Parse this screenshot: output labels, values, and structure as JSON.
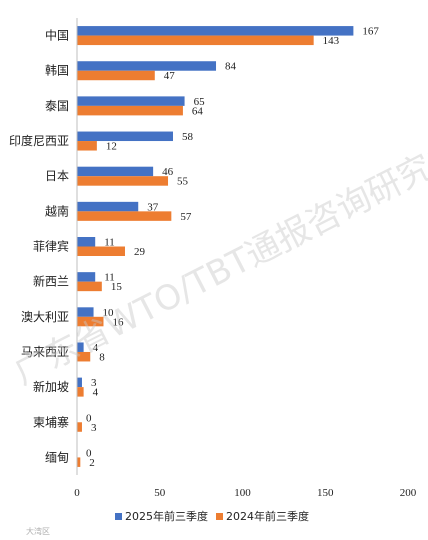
{
  "chart_data": {
    "type": "bar",
    "orientation": "horizontal",
    "categories": [
      "中国",
      "韩国",
      "泰国",
      "印度尼西亚",
      "日本",
      "越南",
      "菲律宾",
      "新西兰",
      "澳大利亚",
      "马来西亚",
      "新加坡",
      "柬埔寨",
      "缅甸"
    ],
    "series": [
      {
        "name": "2025年前三季度",
        "values": [
          167,
          84,
          65,
          58,
          46,
          37,
          11,
          11,
          10,
          4,
          3,
          0,
          0
        ],
        "color": "#4472c4"
      },
      {
        "name": "2024年前三季度",
        "values": [
          143,
          47,
          64,
          12,
          55,
          57,
          29,
          15,
          16,
          8,
          4,
          3,
          2
        ],
        "color": "#ed7d31"
      }
    ],
    "xlim": [
      0,
      200
    ],
    "xticks": [
      0,
      50,
      100,
      150,
      200
    ],
    "grid": false,
    "legend_position": "bottom",
    "data_labels": true
  },
  "watermark": "广东省WTO/TBT通报咨询研究中心",
  "corner_mark": "大湾区"
}
